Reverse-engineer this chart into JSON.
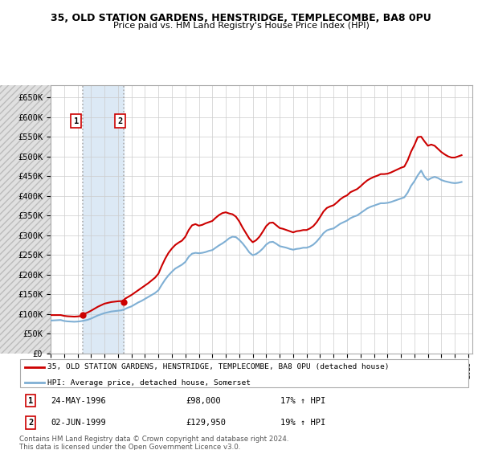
{
  "title": "35, OLD STATION GARDENS, HENSTRIDGE, TEMPLECOMBE, BA8 0PU",
  "subtitle": "Price paid vs. HM Land Registry's House Price Index (HPI)",
  "legend_line1": "35, OLD STATION GARDENS, HENSTRIDGE, TEMPLECOMBE, BA8 0PU (detached house)",
  "legend_line2": "HPI: Average price, detached house, Somerset",
  "sale1_date": "24-MAY-1996",
  "sale1_price": "£98,000",
  "sale1_hpi": "17% ↑ HPI",
  "sale2_date": "02-JUN-1999",
  "sale2_price": "£129,950",
  "sale2_hpi": "19% ↑ HPI",
  "footnote": "Contains HM Land Registry data © Crown copyright and database right 2024.\nThis data is licensed under the Open Government Licence v3.0.",
  "red_color": "#cc0000",
  "blue_color": "#7fafd4",
  "shade_color": "#dce9f5",
  "sale1_x": 1996.39,
  "sale2_x": 1999.45,
  "hpi_data": [
    [
      1994.0,
      83000
    ],
    [
      1994.25,
      83500
    ],
    [
      1994.5,
      84000
    ],
    [
      1994.75,
      84500
    ],
    [
      1995.0,
      82000
    ],
    [
      1995.25,
      81000
    ],
    [
      1995.5,
      80500
    ],
    [
      1995.75,
      80000
    ],
    [
      1996.0,
      80500
    ],
    [
      1996.25,
      81500
    ],
    [
      1996.5,
      83000
    ],
    [
      1996.75,
      85000
    ],
    [
      1997.0,
      88000
    ],
    [
      1997.25,
      92000
    ],
    [
      1997.5,
      96000
    ],
    [
      1997.75,
      99000
    ],
    [
      1998.0,
      102000
    ],
    [
      1998.25,
      104000
    ],
    [
      1998.5,
      106000
    ],
    [
      1998.75,
      107000
    ],
    [
      1999.0,
      108000
    ],
    [
      1999.25,
      109000
    ],
    [
      1999.5,
      112000
    ],
    [
      1999.75,
      116000
    ],
    [
      2000.0,
      119000
    ],
    [
      2000.25,
      124000
    ],
    [
      2000.5,
      129000
    ],
    [
      2000.75,
      133000
    ],
    [
      2001.0,
      138000
    ],
    [
      2001.25,
      143000
    ],
    [
      2001.5,
      148000
    ],
    [
      2001.75,
      153000
    ],
    [
      2002.0,
      160000
    ],
    [
      2002.25,
      174000
    ],
    [
      2002.5,
      187000
    ],
    [
      2002.75,
      198000
    ],
    [
      2003.0,
      207000
    ],
    [
      2003.25,
      215000
    ],
    [
      2003.5,
      220000
    ],
    [
      2003.75,
      225000
    ],
    [
      2004.0,
      232000
    ],
    [
      2004.25,
      245000
    ],
    [
      2004.5,
      253000
    ],
    [
      2004.75,
      255000
    ],
    [
      2005.0,
      254000
    ],
    [
      2005.25,
      255000
    ],
    [
      2005.5,
      257000
    ],
    [
      2005.75,
      260000
    ],
    [
      2006.0,
      262000
    ],
    [
      2006.25,
      268000
    ],
    [
      2006.5,
      274000
    ],
    [
      2006.75,
      279000
    ],
    [
      2007.0,
      285000
    ],
    [
      2007.25,
      292000
    ],
    [
      2007.5,
      296000
    ],
    [
      2007.75,
      295000
    ],
    [
      2008.0,
      288000
    ],
    [
      2008.25,
      279000
    ],
    [
      2008.5,
      268000
    ],
    [
      2008.75,
      256000
    ],
    [
      2009.0,
      249000
    ],
    [
      2009.25,
      252000
    ],
    [
      2009.5,
      258000
    ],
    [
      2009.75,
      266000
    ],
    [
      2010.0,
      276000
    ],
    [
      2010.25,
      282000
    ],
    [
      2010.5,
      283000
    ],
    [
      2010.75,
      278000
    ],
    [
      2011.0,
      272000
    ],
    [
      2011.25,
      270000
    ],
    [
      2011.5,
      268000
    ],
    [
      2011.75,
      265000
    ],
    [
      2012.0,
      263000
    ],
    [
      2012.25,
      265000
    ],
    [
      2012.5,
      266000
    ],
    [
      2012.75,
      268000
    ],
    [
      2013.0,
      268000
    ],
    [
      2013.25,
      271000
    ],
    [
      2013.5,
      276000
    ],
    [
      2013.75,
      284000
    ],
    [
      2014.0,
      294000
    ],
    [
      2014.25,
      305000
    ],
    [
      2014.5,
      312000
    ],
    [
      2014.75,
      315000
    ],
    [
      2015.0,
      317000
    ],
    [
      2015.25,
      323000
    ],
    [
      2015.5,
      329000
    ],
    [
      2015.75,
      333000
    ],
    [
      2016.0,
      337000
    ],
    [
      2016.25,
      343000
    ],
    [
      2016.5,
      347000
    ],
    [
      2016.75,
      350000
    ],
    [
      2017.0,
      356000
    ],
    [
      2017.25,
      362000
    ],
    [
      2017.5,
      368000
    ],
    [
      2017.75,
      372000
    ],
    [
      2018.0,
      375000
    ],
    [
      2018.25,
      378000
    ],
    [
      2018.5,
      381000
    ],
    [
      2018.75,
      381000
    ],
    [
      2019.0,
      382000
    ],
    [
      2019.25,
      384000
    ],
    [
      2019.5,
      387000
    ],
    [
      2019.75,
      390000
    ],
    [
      2020.0,
      393000
    ],
    [
      2020.25,
      396000
    ],
    [
      2020.5,
      408000
    ],
    [
      2020.75,
      425000
    ],
    [
      2021.0,
      437000
    ],
    [
      2021.25,
      452000
    ],
    [
      2021.5,
      464000
    ],
    [
      2021.75,
      448000
    ],
    [
      2022.0,
      440000
    ],
    [
      2022.25,
      445000
    ],
    [
      2022.5,
      448000
    ],
    [
      2022.75,
      445000
    ],
    [
      2023.0,
      440000
    ],
    [
      2023.25,
      437000
    ],
    [
      2023.5,
      435000
    ],
    [
      2023.75,
      433000
    ],
    [
      2024.0,
      432000
    ],
    [
      2024.25,
      433000
    ],
    [
      2024.5,
      435000
    ]
  ],
  "red_data": [
    [
      1994.0,
      97000
    ],
    [
      1994.25,
      97000
    ],
    [
      1994.5,
      97000
    ],
    [
      1994.75,
      97000
    ],
    [
      1995.0,
      95000
    ],
    [
      1995.25,
      94000
    ],
    [
      1995.5,
      93500
    ],
    [
      1995.75,
      93000
    ],
    [
      1996.0,
      93500
    ],
    [
      1996.25,
      94500
    ],
    [
      1996.39,
      98000
    ],
    [
      1996.5,
      100000
    ],
    [
      1996.75,
      103500
    ],
    [
      1997.0,
      108000
    ],
    [
      1997.25,
      113000
    ],
    [
      1997.5,
      118000
    ],
    [
      1997.75,
      122000
    ],
    [
      1998.0,
      126000
    ],
    [
      1998.25,
      128000
    ],
    [
      1998.5,
      130000
    ],
    [
      1998.75,
      131000
    ],
    [
      1999.0,
      132000
    ],
    [
      1999.25,
      132500
    ],
    [
      1999.45,
      129950
    ],
    [
      1999.5,
      138000
    ],
    [
      1999.75,
      143000
    ],
    [
      2000.0,
      148000
    ],
    [
      2000.25,
      154000
    ],
    [
      2000.5,
      160000
    ],
    [
      2000.75,
      166000
    ],
    [
      2001.0,
      172000
    ],
    [
      2001.25,
      178000
    ],
    [
      2001.5,
      185000
    ],
    [
      2001.75,
      192000
    ],
    [
      2002.0,
      202000
    ],
    [
      2002.25,
      222000
    ],
    [
      2002.5,
      240000
    ],
    [
      2002.75,
      255000
    ],
    [
      2003.0,
      266000
    ],
    [
      2003.25,
      275000
    ],
    [
      2003.5,
      281000
    ],
    [
      2003.75,
      286000
    ],
    [
      2004.0,
      296000
    ],
    [
      2004.25,
      313000
    ],
    [
      2004.5,
      325000
    ],
    [
      2004.75,
      328000
    ],
    [
      2005.0,
      324000
    ],
    [
      2005.25,
      326000
    ],
    [
      2005.5,
      330000
    ],
    [
      2005.75,
      333000
    ],
    [
      2006.0,
      336000
    ],
    [
      2006.25,
      344000
    ],
    [
      2006.5,
      351000
    ],
    [
      2006.75,
      356000
    ],
    [
      2007.0,
      358000
    ],
    [
      2007.25,
      355000
    ],
    [
      2007.5,
      353000
    ],
    [
      2007.75,
      347000
    ],
    [
      2008.0,
      335000
    ],
    [
      2008.25,
      319000
    ],
    [
      2008.5,
      305000
    ],
    [
      2008.75,
      291000
    ],
    [
      2009.0,
      282000
    ],
    [
      2009.25,
      287000
    ],
    [
      2009.5,
      296000
    ],
    [
      2009.75,
      309000
    ],
    [
      2010.0,
      323000
    ],
    [
      2010.25,
      331000
    ],
    [
      2010.5,
      332000
    ],
    [
      2010.75,
      325000
    ],
    [
      2011.0,
      318000
    ],
    [
      2011.25,
      316000
    ],
    [
      2011.5,
      313000
    ],
    [
      2011.75,
      310000
    ],
    [
      2012.0,
      307000
    ],
    [
      2012.25,
      310000
    ],
    [
      2012.5,
      311000
    ],
    [
      2012.75,
      313000
    ],
    [
      2013.0,
      313000
    ],
    [
      2013.25,
      317000
    ],
    [
      2013.5,
      323000
    ],
    [
      2013.75,
      333000
    ],
    [
      2014.0,
      346000
    ],
    [
      2014.25,
      360000
    ],
    [
      2014.5,
      369000
    ],
    [
      2014.75,
      373000
    ],
    [
      2015.0,
      376000
    ],
    [
      2015.25,
      383000
    ],
    [
      2015.5,
      391000
    ],
    [
      2015.75,
      397000
    ],
    [
      2016.0,
      401000
    ],
    [
      2016.25,
      409000
    ],
    [
      2016.5,
      413000
    ],
    [
      2016.75,
      417000
    ],
    [
      2017.0,
      424000
    ],
    [
      2017.25,
      432000
    ],
    [
      2017.5,
      439000
    ],
    [
      2017.75,
      444000
    ],
    [
      2018.0,
      448000
    ],
    [
      2018.25,
      451000
    ],
    [
      2018.5,
      455000
    ],
    [
      2018.75,
      455000
    ],
    [
      2019.0,
      456000
    ],
    [
      2019.25,
      459000
    ],
    [
      2019.5,
      463000
    ],
    [
      2019.75,
      467000
    ],
    [
      2020.0,
      471000
    ],
    [
      2020.25,
      474000
    ],
    [
      2020.5,
      490000
    ],
    [
      2020.75,
      512000
    ],
    [
      2021.0,
      529000
    ],
    [
      2021.25,
      549000
    ],
    [
      2021.5,
      550000
    ],
    [
      2021.75,
      538000
    ],
    [
      2022.0,
      527000
    ],
    [
      2022.25,
      530000
    ],
    [
      2022.5,
      527000
    ],
    [
      2022.75,
      519000
    ],
    [
      2023.0,
      511000
    ],
    [
      2023.25,
      505000
    ],
    [
      2023.5,
      500000
    ],
    [
      2023.75,
      497000
    ],
    [
      2024.0,
      497000
    ],
    [
      2024.25,
      500000
    ],
    [
      2024.5,
      503000
    ]
  ],
  "yticks": [
    0,
    50000,
    100000,
    150000,
    200000,
    250000,
    300000,
    350000,
    400000,
    450000,
    500000,
    550000,
    600000,
    650000
  ],
  "xlim": [
    1994.0,
    2025.3
  ],
  "ylim": [
    0,
    680000
  ]
}
